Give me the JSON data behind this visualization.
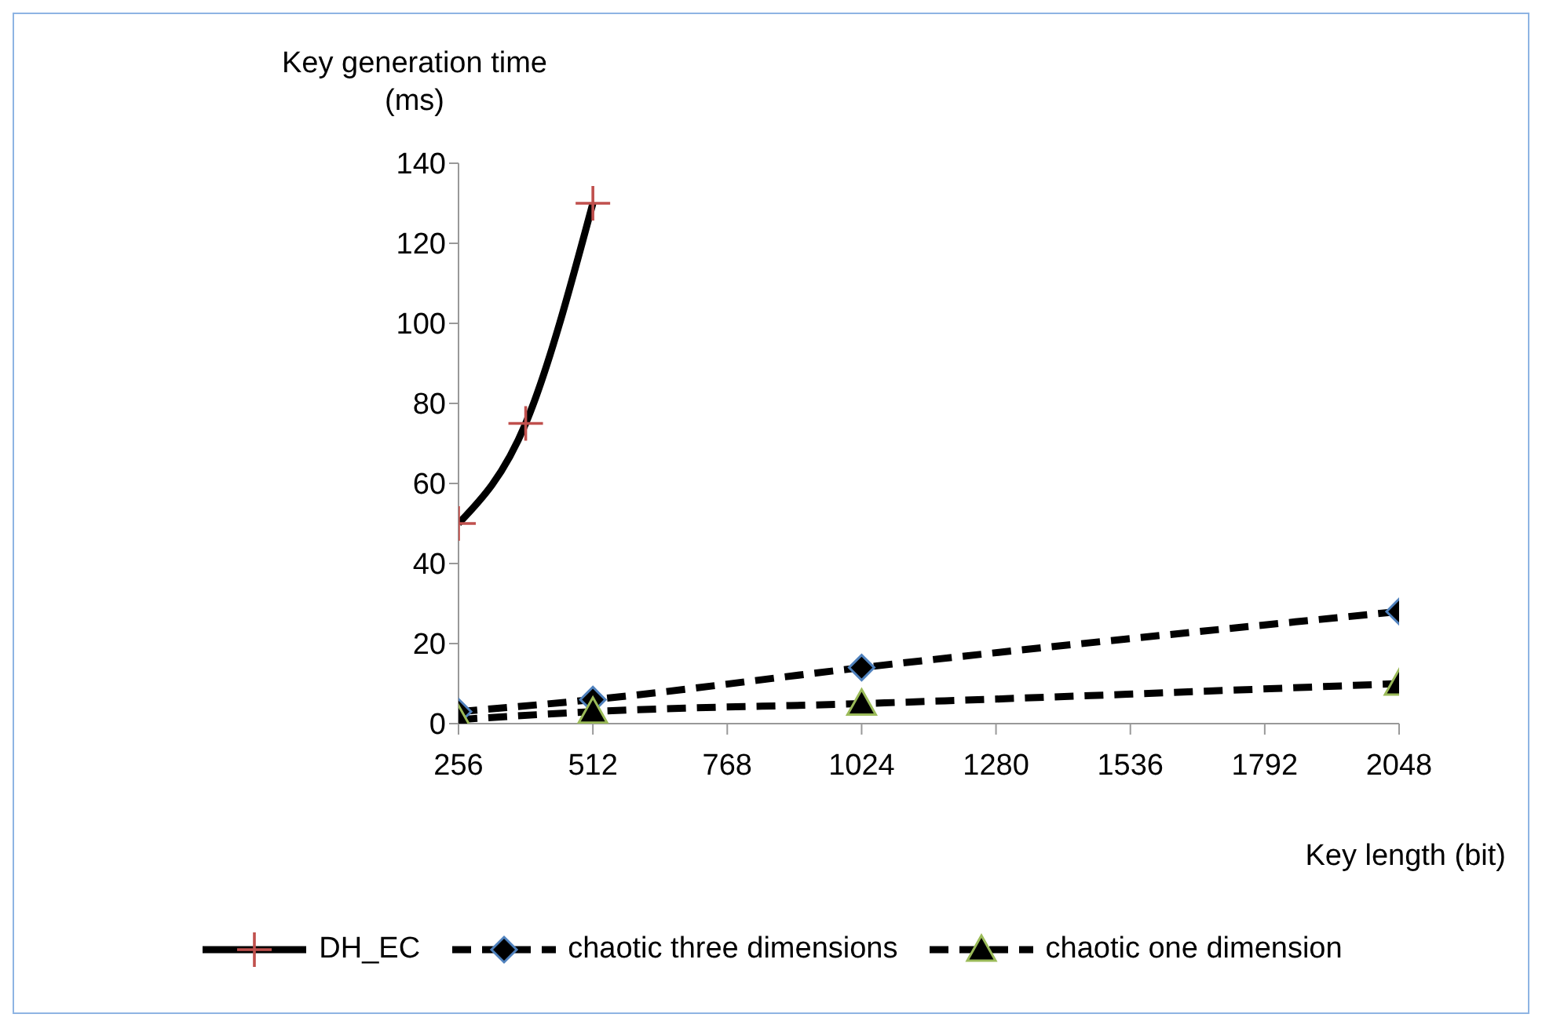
{
  "chart_data": {
    "type": "line",
    "xlabel": "Key length (bit)",
    "ylabel": "Key generation time (ms)",
    "xlim": [
      256,
      2048
    ],
    "xticks": [
      256,
      512,
      768,
      1024,
      1280,
      1536,
      1792,
      2048
    ],
    "ylim": [
      0,
      140
    ],
    "yticks": [
      0,
      20,
      40,
      60,
      80,
      100,
      120,
      140
    ],
    "grid": false,
    "legend": "bottom",
    "series": [
      {
        "name": "DH_EC",
        "color": "#000000",
        "x": [
          256,
          384,
          512
        ],
        "values": [
          50,
          75,
          130
        ],
        "marker": "cross",
        "line_style": "solid"
      },
      {
        "name": "chaotic three dimensions",
        "color": "#000000",
        "x": [
          256,
          512,
          1024,
          2048
        ],
        "values": [
          3,
          6,
          14,
          28
        ],
        "marker": "diamond",
        "line_style": "dashed"
      },
      {
        "name": "chaotic one dimension",
        "color": "#000000",
        "x": [
          256,
          512,
          1024,
          2048
        ],
        "values": [
          1,
          3,
          5,
          10
        ],
        "marker": "triangle",
        "line_style": "dashed"
      }
    ]
  }
}
